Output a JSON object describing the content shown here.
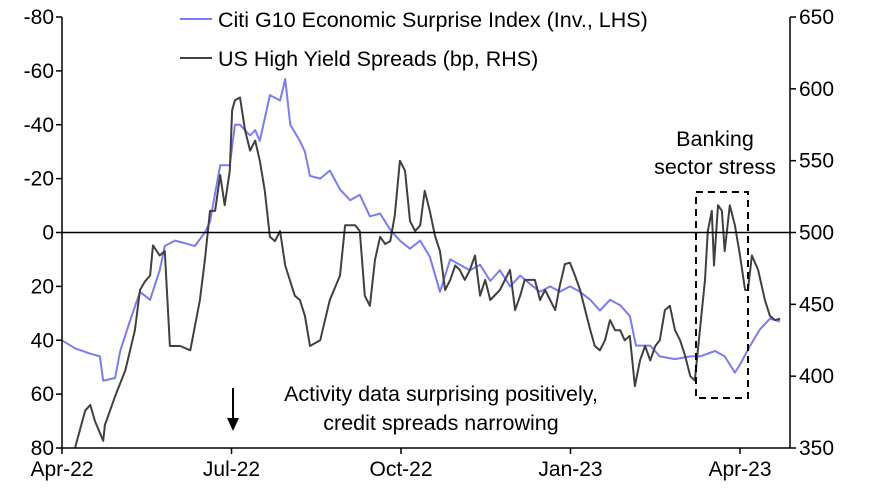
{
  "chart_data": {
    "type": "line",
    "title": "",
    "x_unit": "months since Apr-22",
    "x_ticks": [
      {
        "m": 0,
        "label": "Apr-22"
      },
      {
        "m": 3,
        "label": "Jul-22"
      },
      {
        "m": 6,
        "label": "Oct-22"
      },
      {
        "m": 9,
        "label": "Jan-23"
      },
      {
        "m": 12,
        "label": "Apr-23"
      }
    ],
    "xlim": [
      0,
      12.9
    ],
    "left_axis": {
      "ylim": [
        -80,
        80
      ],
      "inverted": true,
      "ticks": [
        -80,
        -60,
        -40,
        -20,
        0,
        20,
        40,
        60,
        80
      ]
    },
    "right_axis": {
      "ylim": [
        350,
        650
      ],
      "ticks": [
        350,
        400,
        450,
        500,
        550,
        600,
        650
      ]
    },
    "zero_line": 0,
    "legend": {
      "placement": "top-center"
    },
    "series": [
      {
        "name": "Citi G10 Economic Surprise Index (Inv., LHS)",
        "axis": "left",
        "color": "#7b7bf7",
        "points": [
          [
            0,
            40
          ],
          [
            0.23,
            43
          ],
          [
            0.5,
            45
          ],
          [
            0.67,
            46
          ],
          [
            0.73,
            55
          ],
          [
            0.94,
            54
          ],
          [
            1.03,
            44
          ],
          [
            1.2,
            33
          ],
          [
            1.38,
            22
          ],
          [
            1.56,
            25
          ],
          [
            1.73,
            14
          ],
          [
            1.82,
            5
          ],
          [
            2.0,
            3
          ],
          [
            2.18,
            4
          ],
          [
            2.35,
            5
          ],
          [
            2.53,
            0
          ],
          [
            2.62,
            -4
          ],
          [
            2.8,
            -25
          ],
          [
            2.97,
            -25
          ],
          [
            3.06,
            -40
          ],
          [
            3.15,
            -40
          ],
          [
            3.33,
            -36
          ],
          [
            3.42,
            -38
          ],
          [
            3.5,
            -34
          ],
          [
            3.68,
            -51
          ],
          [
            3.86,
            -49
          ],
          [
            3.95,
            -57
          ],
          [
            4.04,
            -40
          ],
          [
            4.21,
            -34
          ],
          [
            4.3,
            -30
          ],
          [
            4.39,
            -21
          ],
          [
            4.57,
            -20
          ],
          [
            4.74,
            -23
          ],
          [
            4.92,
            -16
          ],
          [
            5.1,
            -12
          ],
          [
            5.27,
            -14
          ],
          [
            5.45,
            -6
          ],
          [
            5.63,
            -7
          ],
          [
            5.81,
            -1
          ],
          [
            5.98,
            3
          ],
          [
            6.16,
            6
          ],
          [
            6.34,
            3
          ],
          [
            6.51,
            9
          ],
          [
            6.69,
            22
          ],
          [
            6.87,
            10
          ],
          [
            7.04,
            12
          ],
          [
            7.22,
            14
          ],
          [
            7.4,
            12
          ],
          [
            7.58,
            18
          ],
          [
            7.75,
            14
          ],
          [
            7.93,
            20
          ],
          [
            8.11,
            16
          ],
          [
            8.28,
            19
          ],
          [
            8.46,
            22
          ],
          [
            8.64,
            20
          ],
          [
            8.81,
            22
          ],
          [
            8.99,
            20
          ],
          [
            9.17,
            22
          ],
          [
            9.35,
            25
          ],
          [
            9.52,
            29
          ],
          [
            9.7,
            25
          ],
          [
            9.88,
            27
          ],
          [
            10.05,
            31
          ],
          [
            10.16,
            42
          ],
          [
            10.41,
            42
          ],
          [
            10.58,
            46
          ],
          [
            10.85,
            47
          ],
          [
            11.12,
            46
          ],
          [
            11.29,
            46
          ],
          [
            11.56,
            44
          ],
          [
            11.73,
            46
          ],
          [
            11.91,
            52
          ],
          [
            12.0,
            49
          ],
          [
            12.18,
            42
          ],
          [
            12.35,
            36
          ],
          [
            12.53,
            32
          ],
          [
            12.71,
            33
          ]
        ]
      },
      {
        "name": "US High Yield Spreads (bp, RHS)",
        "axis": "right",
        "color": "#404040",
        "points": [
          [
            0.23,
            350
          ],
          [
            0.41,
            376
          ],
          [
            0.5,
            380
          ],
          [
            0.58,
            369
          ],
          [
            0.73,
            355
          ],
          [
            0.76,
            366
          ],
          [
            0.94,
            386
          ],
          [
            1.12,
            404
          ],
          [
            1.29,
            432
          ],
          [
            1.38,
            460
          ],
          [
            1.47,
            466
          ],
          [
            1.56,
            470
          ],
          [
            1.61,
            491
          ],
          [
            1.73,
            484
          ],
          [
            1.82,
            487
          ],
          [
            1.91,
            421
          ],
          [
            2.09,
            421
          ],
          [
            2.27,
            418
          ],
          [
            2.44,
            453
          ],
          [
            2.53,
            481
          ],
          [
            2.62,
            515
          ],
          [
            2.71,
            515
          ],
          [
            2.8,
            540
          ],
          [
            2.88,
            519
          ],
          [
            2.97,
            543
          ],
          [
            3.01,
            585
          ],
          [
            3.06,
            592
          ],
          [
            3.15,
            594
          ],
          [
            3.24,
            571
          ],
          [
            3.33,
            557
          ],
          [
            3.42,
            564
          ],
          [
            3.5,
            550
          ],
          [
            3.59,
            529
          ],
          [
            3.68,
            497
          ],
          [
            3.77,
            494
          ],
          [
            3.86,
            501
          ],
          [
            3.95,
            477
          ],
          [
            4.12,
            456
          ],
          [
            4.21,
            453
          ],
          [
            4.3,
            442
          ],
          [
            4.39,
            421
          ],
          [
            4.57,
            425
          ],
          [
            4.74,
            453
          ],
          [
            4.92,
            470
          ],
          [
            5.01,
            505
          ],
          [
            5.19,
            505
          ],
          [
            5.27,
            501
          ],
          [
            5.36,
            456
          ],
          [
            5.45,
            449
          ],
          [
            5.54,
            481
          ],
          [
            5.63,
            497
          ],
          [
            5.72,
            492
          ],
          [
            5.81,
            494
          ],
          [
            5.89,
            512
          ],
          [
            5.98,
            550
          ],
          [
            6.07,
            543
          ],
          [
            6.16,
            508
          ],
          [
            6.25,
            501
          ],
          [
            6.34,
            505
          ],
          [
            6.42,
            529
          ],
          [
            6.51,
            515
          ],
          [
            6.6,
            498
          ],
          [
            6.69,
            487
          ],
          [
            6.78,
            460
          ],
          [
            6.87,
            467
          ],
          [
            6.96,
            477
          ],
          [
            7.04,
            474
          ],
          [
            7.13,
            467
          ],
          [
            7.22,
            474
          ],
          [
            7.31,
            484
          ],
          [
            7.4,
            456
          ],
          [
            7.49,
            467
          ],
          [
            7.58,
            453
          ],
          [
            7.75,
            460
          ],
          [
            7.93,
            474
          ],
          [
            8.02,
            446
          ],
          [
            8.11,
            456
          ],
          [
            8.19,
            467
          ],
          [
            8.37,
            467
          ],
          [
            8.46,
            453
          ],
          [
            8.55,
            460
          ],
          [
            8.73,
            446
          ],
          [
            8.81,
            463
          ],
          [
            8.9,
            478
          ],
          [
            8.99,
            479
          ],
          [
            9.08,
            470
          ],
          [
            9.17,
            460
          ],
          [
            9.35,
            432
          ],
          [
            9.43,
            421
          ],
          [
            9.52,
            418
          ],
          [
            9.61,
            425
          ],
          [
            9.7,
            439
          ],
          [
            9.79,
            432
          ],
          [
            9.88,
            432
          ],
          [
            9.96,
            425
          ],
          [
            10.05,
            428
          ],
          [
            10.14,
            393
          ],
          [
            10.23,
            411
          ],
          [
            10.32,
            421
          ],
          [
            10.41,
            411
          ],
          [
            10.5,
            421
          ],
          [
            10.58,
            425
          ],
          [
            10.67,
            446
          ],
          [
            10.76,
            449
          ],
          [
            10.85,
            432
          ],
          [
            10.94,
            425
          ],
          [
            11.03,
            414
          ],
          [
            11.12,
            400
          ],
          [
            11.2,
            397
          ],
          [
            11.29,
            432
          ],
          [
            11.38,
            467
          ],
          [
            11.43,
            501
          ],
          [
            11.5,
            515
          ],
          [
            11.54,
            477
          ],
          [
            11.61,
            519
          ],
          [
            11.68,
            515
          ],
          [
            11.73,
            487
          ],
          [
            11.82,
            519
          ],
          [
            11.91,
            505
          ],
          [
            12.0,
            484
          ],
          [
            12.09,
            460
          ],
          [
            12.14,
            460
          ],
          [
            12.21,
            484
          ],
          [
            12.32,
            474
          ],
          [
            12.44,
            453
          ],
          [
            12.53,
            442
          ],
          [
            12.62,
            439
          ],
          [
            12.71,
            440
          ]
        ]
      }
    ],
    "annotations": {
      "banking_line1": "Banking",
      "banking_line2": "sector stress",
      "activity_line1": "Activity data surprising positively,",
      "activity_line2": "credit spreads narrowing"
    }
  }
}
